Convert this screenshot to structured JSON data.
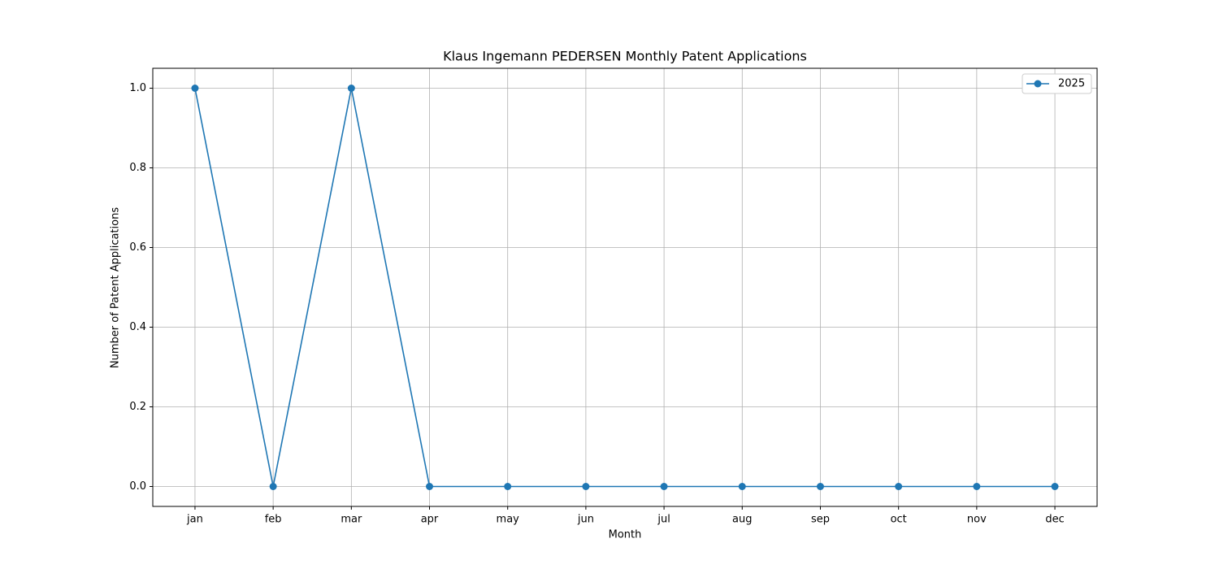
{
  "chart_data": {
    "type": "line",
    "title": "Klaus Ingemann PEDERSEN Monthly Patent Applications",
    "x_label": "Month",
    "y_label": "Number of Patent Applications",
    "categories": [
      "jan",
      "feb",
      "mar",
      "apr",
      "may",
      "jun",
      "jul",
      "aug",
      "sep",
      "oct",
      "nov",
      "dec"
    ],
    "series": [
      {
        "name": "2025",
        "color": "#1f77b4",
        "values": [
          1,
          0,
          1,
          0,
          0,
          0,
          0,
          0,
          0,
          0,
          0,
          0
        ]
      }
    ],
    "ylim": [
      -0.05,
      1.05
    ],
    "yticks": [
      {
        "value": 0,
        "label": "0.0"
      },
      {
        "value": 0.2,
        "label": "0.2"
      },
      {
        "value": 0.4,
        "label": "0.4"
      },
      {
        "value": 0.6,
        "label": "0.6"
      },
      {
        "value": 0.8,
        "label": "0.8"
      },
      {
        "value": 1,
        "label": "1.0"
      }
    ],
    "grid": true,
    "legend": "upper right"
  }
}
